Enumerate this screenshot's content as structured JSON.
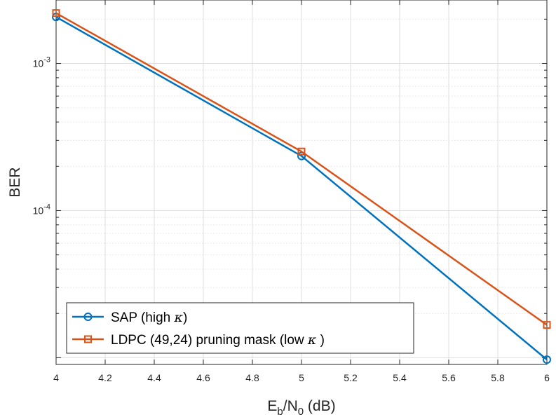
{
  "chart_data": {
    "type": "line",
    "scale_y": "log",
    "xlabel": "E_b/N_0 (dB)",
    "xlabel_parts": {
      "base1": "E",
      "sub1": "b",
      "mid": "/N",
      "sub2": "0",
      "tail": " (dB)"
    },
    "ylabel": "BER",
    "xlim": [
      4,
      6
    ],
    "ylim": [
      9e-06,
      0.0027
    ],
    "x_ticks": [
      4,
      4.2,
      4.4,
      4.6,
      4.8,
      5,
      5.2,
      5.4,
      5.6,
      5.8,
      6
    ],
    "x_tick_labels": [
      "4",
      "4.2",
      "4.4",
      "4.6",
      "4.8",
      "5",
      "5.2",
      "5.4",
      "5.6",
      "5.8",
      "6"
    ],
    "y_major_ticks": [
      {
        "value": 0.001,
        "base": "10",
        "exp": "-3"
      },
      {
        "value": 0.0001,
        "base": "10",
        "exp": "-4"
      }
    ],
    "grid": true,
    "legend_position": "bottom-left",
    "series": [
      {
        "name": "SAP (high κ)",
        "legend_text": "SAP (high ",
        "legend_symbol": "κ",
        "legend_tail": ")",
        "color": "#0072BD",
        "marker": "circle",
        "x": [
          4,
          5,
          6
        ],
        "y": [
          0.00207,
          0.000235,
          9.7e-06
        ]
      },
      {
        "name": "LDPC (49,24) pruning mask (low κ )",
        "legend_text": "LDPC (49,24) pruning mask (low ",
        "legend_symbol": "κ",
        "legend_tail": " )",
        "color": "#D95319",
        "marker": "square",
        "x": [
          4,
          5,
          6
        ],
        "y": [
          0.0022,
          0.000252,
          1.67e-05
        ]
      }
    ]
  }
}
